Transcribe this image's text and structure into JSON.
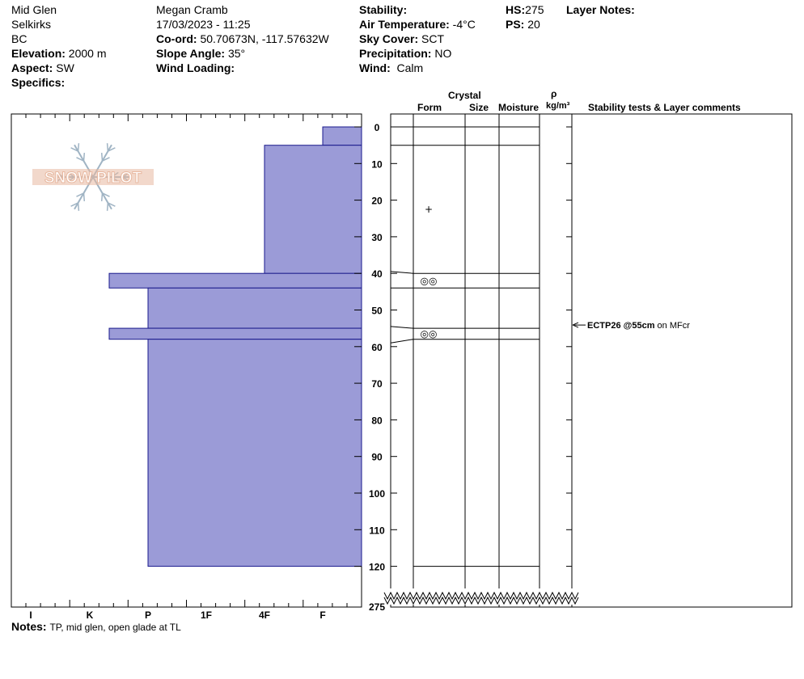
{
  "header": {
    "location": "Mid Glen",
    "range": "Selkirks",
    "province": "BC",
    "elevation_label": "Elevation:",
    "elevation": "2000 m",
    "aspect_label": "Aspect:",
    "aspect": "SW",
    "specifics_label": "Specifics:",
    "observer": "Megan Cramb",
    "datetime": "17/03/2023 - 11:25",
    "coord_label": "Co-ord:",
    "coord": "50.70673N, -117.57632W",
    "slope_label": "Slope Angle:",
    "slope": "35°",
    "wind_loading_label": "Wind Loading:",
    "stability_label": "Stability:",
    "air_temp_label": "Air Temperature:",
    "air_temp": "-4°C",
    "sky_label": "Sky Cover:",
    "sky": "SCT",
    "precip_label": "Precipitation:",
    "precip": "NO",
    "wind_label": "Wind:",
    "wind": "Calm",
    "hs_label": "HS:",
    "hs": "275",
    "ps_label": "PS:",
    "ps": "20",
    "layer_notes_label": "Layer Notes:"
  },
  "columns": {
    "crystal": "Crystal",
    "form": "Form",
    "size": "Size",
    "moisture": "Moisture",
    "rho": "ρ",
    "density_unit": "kg/m³",
    "stability": "Stability tests & Layer comments"
  },
  "notes_label": "Notes:",
  "notes": "TP, mid glen, open glade at TL",
  "logo_text": "SNOW PILOT",
  "colors": {
    "layer_fill": "#9b9bd7",
    "layer_stroke": "#1a1a8c",
    "logo": "#e8b8a0",
    "flake": "#a0b4c4"
  },
  "chart_data": {
    "type": "bar",
    "hardness_scale": [
      "I",
      "K",
      "P",
      "1F",
      "4F",
      "F"
    ],
    "depth_ticks": [
      0,
      10,
      20,
      30,
      40,
      50,
      60,
      70,
      80,
      90,
      100,
      110,
      120
    ],
    "depth_total": 275,
    "depth_total_label": "275",
    "layers": [
      {
        "top": 0,
        "bottom": 5,
        "hardness": "F",
        "form": ""
      },
      {
        "top": 5,
        "bottom": 40,
        "hardness": "4F",
        "form": "+"
      },
      {
        "top": 40,
        "bottom": 44,
        "hardness": "K+",
        "form": "◎◎"
      },
      {
        "top": 44,
        "bottom": 55,
        "hardness": "P",
        "form": ""
      },
      {
        "top": 55,
        "bottom": 58,
        "hardness": "K+",
        "form": "◎◎"
      },
      {
        "top": 58,
        "bottom": 120,
        "hardness": "P",
        "form": ""
      }
    ],
    "tests": [
      {
        "depth": 55,
        "result": "ECTP26 @55cm",
        "comment": "on MFcr"
      }
    ]
  }
}
